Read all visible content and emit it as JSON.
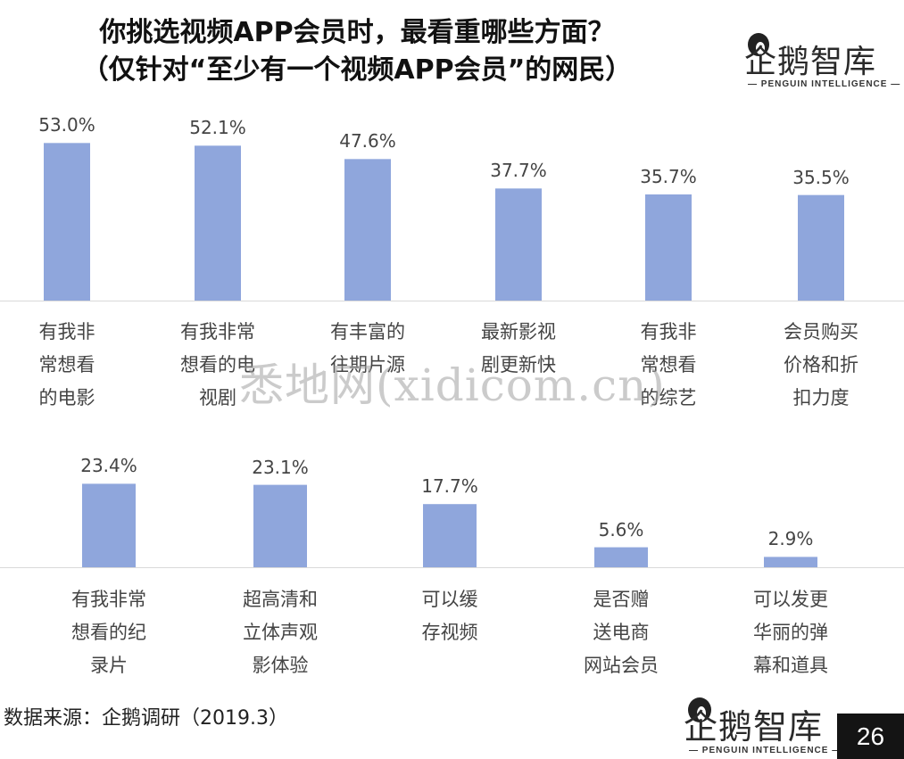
{
  "titles": {
    "line1": "你挑选视频APP会员时，最看重哪些方面？",
    "line2": "（仅针对“至少有一个视频APP会员”的网民）"
  },
  "logo": {
    "name": "企鹅智库",
    "tagline": "— PENGUIN INTELLIGENCE —"
  },
  "colors": {
    "bar": "#8fa6dc",
    "axis": "#d9d9d9",
    "page_badge": "#141414"
  },
  "chart_data": [
    {
      "type": "bar",
      "categories": [
        "有我非\n常想看\n的电影",
        "有我非常\n想看的电\n视剧",
        "有丰富的\n往期片源",
        "最新影视\n剧更新快",
        "有我非\n常想看\n的综艺",
        "会员购买\n价格和折\n扣力度"
      ],
      "values": [
        53.0,
        52.1,
        47.6,
        37.7,
        35.7,
        35.5
      ],
      "value_labels": [
        "53.0%",
        "52.1%",
        "47.6%",
        "37.7%",
        "35.7%",
        "35.5%"
      ],
      "ylim": [
        0,
        60
      ],
      "grid": false
    },
    {
      "type": "bar",
      "categories": [
        "有我非常\n想看的纪\n录片",
        "超高清和\n立体声观\n影体验",
        "可以缓\n存视频",
        "是否赠\n送电商\n网站会员",
        "可以发更\n华丽的弹\n幕和道具"
      ],
      "values": [
        23.4,
        23.1,
        17.7,
        5.6,
        2.9
      ],
      "value_labels": [
        "23.4%",
        "23.1%",
        "17.7%",
        "5.6%",
        "2.9%"
      ],
      "ylim": [
        0,
        28
      ],
      "grid": false
    }
  ],
  "footer": {
    "source": "数据来源：企鹅调研（2019.3）",
    "page_number": "26"
  },
  "watermark": "悉地网(xidicom.cn)"
}
